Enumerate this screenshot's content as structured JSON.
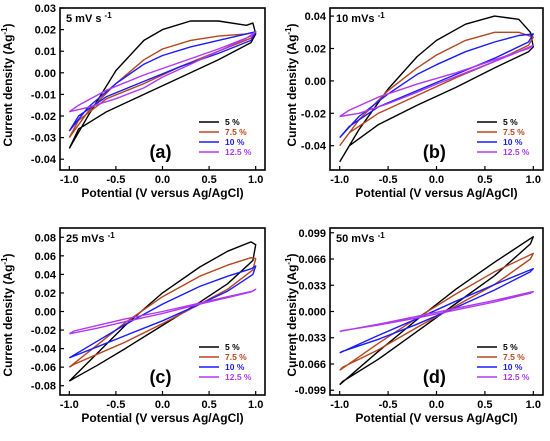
{
  "figure": {
    "legend_position": "bottom-right",
    "colors": [
      "#000000",
      "#b5461f",
      "#1a1aff",
      "#b039f0"
    ]
  },
  "chart_data": [
    {
      "type": "line",
      "panel_label": "(a)",
      "title": "5 mV s",
      "title_sup": "-1",
      "xlabel": "Potential (V versus Ag/AgCl)",
      "ylabel": "Current density (Ag",
      "ylabel_sup": "-1",
      "ylabel_end": ")",
      "xlim": [
        -1.1,
        1.1
      ],
      "ylim": [
        -0.045,
        0.03
      ],
      "x_ticks": [
        -1.0,
        -0.5,
        0.0,
        0.5,
        1.0
      ],
      "x_tick_labels": [
        "-1.0",
        "-0.5",
        "0.0",
        "0.5",
        "1.0"
      ],
      "y_ticks": [
        -0.04,
        -0.03,
        -0.02,
        -0.01,
        0.0,
        0.01,
        0.02,
        0.03
      ],
      "y_tick_labels": [
        "-0.04",
        "-0.03",
        "-0.02",
        "-0.01",
        "0.00",
        "0.01",
        "0.02",
        "0.03"
      ],
      "grid": false,
      "legend_position": "bottom-right",
      "series": [
        {
          "name": "5 %",
          "color": "#000000",
          "x": [
            -1.0,
            -0.8,
            -0.5,
            -0.2,
            0.0,
            0.3,
            0.6,
            0.9,
            0.97,
            1.0,
            0.95,
            0.6,
            0.2,
            -0.2,
            -0.6,
            -0.9,
            -1.0
          ],
          "y": [
            -0.035,
            -0.02,
            0.001,
            0.015,
            0.02,
            0.024,
            0.024,
            0.022,
            0.023,
            0.018,
            0.014,
            0.006,
            -0.002,
            -0.01,
            -0.018,
            -0.026,
            -0.035
          ]
        },
        {
          "name": "7.5 %",
          "color": "#b5461f",
          "x": [
            -1.0,
            -0.8,
            -0.5,
            -0.2,
            0.0,
            0.3,
            0.6,
            0.9,
            1.0,
            0.95,
            0.6,
            0.2,
            -0.2,
            -0.6,
            -0.9,
            -1.0
          ],
          "y": [
            -0.03,
            -0.018,
            -0.005,
            0.006,
            0.011,
            0.015,
            0.017,
            0.018,
            0.019,
            0.016,
            0.01,
            0.003,
            -0.005,
            -0.012,
            -0.022,
            -0.03
          ]
        },
        {
          "name": "10 %",
          "color": "#1a1aff",
          "x": [
            -1.0,
            -0.8,
            -0.5,
            -0.2,
            0.0,
            0.3,
            0.6,
            0.9,
            1.0,
            0.95,
            0.6,
            0.2,
            -0.2,
            -0.6,
            -0.9,
            -1.0
          ],
          "y": [
            -0.027,
            -0.016,
            -0.005,
            0.004,
            0.008,
            0.012,
            0.015,
            0.018,
            0.019,
            0.015,
            0.009,
            0.003,
            -0.004,
            -0.011,
            -0.02,
            -0.027
          ]
        },
        {
          "name": "12.5 %",
          "color": "#b039f0",
          "x": [
            -1.0,
            -0.8,
            -0.5,
            -0.2,
            0.0,
            0.3,
            0.6,
            0.9,
            1.0,
            0.95,
            0.6,
            0.2,
            -0.2,
            -0.6,
            -0.9,
            -1.0
          ],
          "y": [
            -0.018,
            -0.016,
            -0.012,
            -0.007,
            -0.002,
            0.004,
            0.01,
            0.016,
            0.019,
            0.017,
            0.011,
            0.005,
            -0.001,
            -0.008,
            -0.015,
            -0.018
          ]
        }
      ]
    },
    {
      "type": "line",
      "panel_label": "(b)",
      "title": "10 mVs",
      "title_sup": "-1",
      "xlabel": "Potential (V versus Ag/AgCl)",
      "ylabel": "Current density (Ag",
      "ylabel_sup": "-1",
      "ylabel_end": ")",
      "xlim": [
        -1.1,
        1.1
      ],
      "ylim": [
        -0.055,
        0.045
      ],
      "x_ticks": [
        -1.0,
        -0.5,
        0.0,
        0.5,
        1.0
      ],
      "x_tick_labels": [
        "-1.0",
        "-0.5",
        "0.0",
        "0.5",
        "1.0"
      ],
      "y_ticks": [
        -0.04,
        -0.02,
        0.0,
        0.02,
        0.04
      ],
      "y_tick_labels": [
        "-0.04",
        "-0.02",
        "0.00",
        "0.02",
        "0.04"
      ],
      "grid": false,
      "legend_position": "bottom-right",
      "series": [
        {
          "name": "5 %",
          "color": "#000000",
          "x": [
            -1.0,
            -0.8,
            -0.5,
            -0.2,
            0.0,
            0.3,
            0.6,
            0.85,
            0.97,
            1.0,
            0.95,
            0.6,
            0.2,
            -0.2,
            -0.6,
            -0.9,
            -1.0
          ],
          "y": [
            -0.05,
            -0.03,
            -0.005,
            0.015,
            0.025,
            0.035,
            0.04,
            0.038,
            0.03,
            0.021,
            0.018,
            0.008,
            -0.004,
            -0.015,
            -0.027,
            -0.04,
            -0.05
          ]
        },
        {
          "name": "7.5 %",
          "color": "#b5461f",
          "x": [
            -1.0,
            -0.8,
            -0.5,
            -0.2,
            0.0,
            0.3,
            0.6,
            0.85,
            1.0,
            0.95,
            0.6,
            0.2,
            -0.2,
            -0.6,
            -0.9,
            -1.0
          ],
          "y": [
            -0.04,
            -0.024,
            -0.006,
            0.008,
            0.016,
            0.025,
            0.03,
            0.03,
            0.027,
            0.022,
            0.012,
            0.002,
            -0.009,
            -0.02,
            -0.032,
            -0.04
          ]
        },
        {
          "name": "10 %",
          "color": "#1a1aff",
          "x": [
            -1.0,
            -0.8,
            -0.5,
            -0.2,
            0.0,
            0.3,
            0.6,
            0.85,
            1.0,
            0.95,
            0.6,
            0.2,
            -0.2,
            -0.6,
            -0.9,
            -1.0
          ],
          "y": [
            -0.035,
            -0.022,
            -0.008,
            0.004,
            0.01,
            0.018,
            0.024,
            0.028,
            0.029,
            0.024,
            0.014,
            0.004,
            -0.006,
            -0.016,
            -0.028,
            -0.035
          ]
        },
        {
          "name": "12.5 %",
          "color": "#b039f0",
          "x": [
            -1.0,
            -0.8,
            -0.5,
            -0.2,
            0.0,
            0.3,
            0.6,
            0.85,
            1.0,
            0.95,
            0.6,
            0.2,
            -0.2,
            -0.6,
            -0.9,
            -1.0
          ],
          "y": [
            -0.022,
            -0.02,
            -0.014,
            -0.007,
            -0.002,
            0.005,
            0.012,
            0.018,
            0.022,
            0.02,
            0.013,
            0.005,
            -0.002,
            -0.01,
            -0.018,
            -0.022
          ]
        }
      ]
    },
    {
      "type": "line",
      "panel_label": "(c)",
      "title": "25 mVs",
      "title_sup": "-1",
      "xlabel": "Potential (V versus Ag/AgCl)",
      "ylabel": "Current density (Ag",
      "ylabel_sup": "-1",
      "ylabel_end": ")",
      "xlim": [
        -1.1,
        1.1
      ],
      "ylim": [
        -0.09,
        0.09
      ],
      "x_ticks": [
        -1.0,
        -0.5,
        0.0,
        0.5,
        1.0
      ],
      "x_tick_labels": [
        "-1.0",
        "-0.5",
        "0.0",
        "0.5",
        "1.0"
      ],
      "y_ticks": [
        -0.08,
        -0.06,
        -0.04,
        -0.02,
        0.0,
        0.02,
        0.04,
        0.06,
        0.08
      ],
      "y_tick_labels": [
        "-0.08",
        "-0.06",
        "-0.04",
        "-0.02",
        "0.00",
        "0.02",
        "0.04",
        "0.06",
        "0.08"
      ],
      "grid": false,
      "legend_position": "bottom-right",
      "series": [
        {
          "name": "5 %",
          "color": "#000000",
          "x": [
            -1.0,
            -0.7,
            -0.4,
            0.0,
            0.4,
            0.7,
            0.95,
            1.0,
            0.97,
            0.7,
            0.4,
            0.0,
            -0.4,
            -0.7,
            -0.95,
            -1.0
          ],
          "y": [
            -0.075,
            -0.045,
            -0.015,
            0.02,
            0.048,
            0.065,
            0.075,
            0.072,
            0.055,
            0.03,
            0.01,
            -0.015,
            -0.04,
            -0.058,
            -0.072,
            -0.075
          ]
        },
        {
          "name": "7.5 %",
          "color": "#b5461f",
          "x": [
            -1.0,
            -0.7,
            -0.4,
            0.0,
            0.4,
            0.7,
            0.95,
            1.0,
            0.97,
            0.7,
            0.4,
            0.0,
            -0.4,
            -0.7,
            -0.95,
            -1.0
          ],
          "y": [
            -0.06,
            -0.036,
            -0.012,
            0.016,
            0.038,
            0.05,
            0.058,
            0.057,
            0.045,
            0.024,
            0.008,
            -0.013,
            -0.033,
            -0.046,
            -0.057,
            -0.06
          ]
        },
        {
          "name": "10 %",
          "color": "#1a1aff",
          "x": [
            -1.0,
            -0.7,
            -0.4,
            0.0,
            0.4,
            0.7,
            0.95,
            1.0,
            0.97,
            0.7,
            0.4,
            0.0,
            -0.4,
            -0.7,
            -0.95,
            -1.0
          ],
          "y": [
            -0.05,
            -0.032,
            -0.014,
            0.008,
            0.027,
            0.038,
            0.046,
            0.049,
            0.04,
            0.022,
            0.008,
            -0.01,
            -0.026,
            -0.038,
            -0.048,
            -0.05
          ]
        },
        {
          "name": "12.5 %",
          "color": "#b039f0",
          "x": [
            -1.0,
            -0.7,
            -0.4,
            0.0,
            0.4,
            0.7,
            0.95,
            1.0,
            0.97,
            0.7,
            0.4,
            0.0,
            -0.4,
            -0.7,
            -0.95,
            -1.0
          ],
          "y": [
            -0.024,
            -0.018,
            -0.011,
            -0.002,
            0.008,
            0.015,
            0.021,
            0.024,
            0.022,
            0.016,
            0.009,
            0.0,
            -0.008,
            -0.015,
            -0.021,
            -0.024
          ]
        }
      ]
    },
    {
      "type": "line",
      "panel_label": "(d)",
      "title": "50 mVs",
      "title_sup": "-1",
      "xlabel": "Potential (V versus Ag/AgCl)",
      "ylabel": "Current density (Ag",
      "ylabel_sup": "-1",
      "ylabel_end": ")",
      "xlim": [
        -1.1,
        1.1
      ],
      "ylim": [
        -0.105,
        0.105
      ],
      "x_ticks": [
        -1.0,
        -0.5,
        0.0,
        0.5,
        1.0
      ],
      "x_tick_labels": [
        "-1.0",
        "-0.5",
        "0.0",
        "0.5",
        "1.0"
      ],
      "y_ticks": [
        -0.099,
        -0.066,
        -0.033,
        0.0,
        0.033,
        0.066,
        0.099
      ],
      "y_tick_labels": [
        "-0.099",
        "-0.066",
        "-0.033",
        "0.000",
        "0.033",
        "0.066",
        "0.099"
      ],
      "grid": false,
      "legend_position": "bottom-right",
      "series": [
        {
          "name": "5 %",
          "color": "#000000",
          "x": [
            -1.0,
            -0.6,
            -0.2,
            0.2,
            0.6,
            1.0,
            0.97,
            0.6,
            0.2,
            -0.2,
            -0.6,
            -0.97,
            -1.0
          ],
          "y": [
            -0.092,
            -0.05,
            -0.01,
            0.028,
            0.062,
            0.094,
            0.085,
            0.045,
            0.01,
            -0.025,
            -0.06,
            -0.088,
            -0.092
          ]
        },
        {
          "name": "7.5 %",
          "color": "#b5461f",
          "x": [
            -1.0,
            -0.6,
            -0.2,
            0.2,
            0.6,
            1.0,
            0.97,
            0.6,
            0.2,
            -0.2,
            -0.6,
            -0.97,
            -1.0
          ],
          "y": [
            -0.074,
            -0.04,
            -0.008,
            0.022,
            0.05,
            0.073,
            0.066,
            0.034,
            0.007,
            -0.02,
            -0.048,
            -0.07,
            -0.074
          ]
        },
        {
          "name": "10 %",
          "color": "#1a1aff",
          "x": [
            -1.0,
            -0.6,
            -0.2,
            0.2,
            0.6,
            1.0,
            0.97,
            0.6,
            0.2,
            -0.2,
            -0.6,
            -0.97,
            -1.0
          ],
          "y": [
            -0.052,
            -0.03,
            -0.009,
            0.013,
            0.034,
            0.054,
            0.05,
            0.027,
            0.005,
            -0.016,
            -0.035,
            -0.05,
            -0.052
          ]
        },
        {
          "name": "12.5 %",
          "color": "#b039f0",
          "x": [
            -1.0,
            -0.6,
            -0.2,
            0.2,
            0.6,
            1.0,
            0.97,
            0.6,
            0.2,
            -0.2,
            -0.6,
            -0.97,
            -1.0
          ],
          "y": [
            -0.025,
            -0.016,
            -0.006,
            0.004,
            0.014,
            0.025,
            0.023,
            0.012,
            0.002,
            -0.008,
            -0.017,
            -0.024,
            -0.025
          ]
        }
      ]
    }
  ]
}
